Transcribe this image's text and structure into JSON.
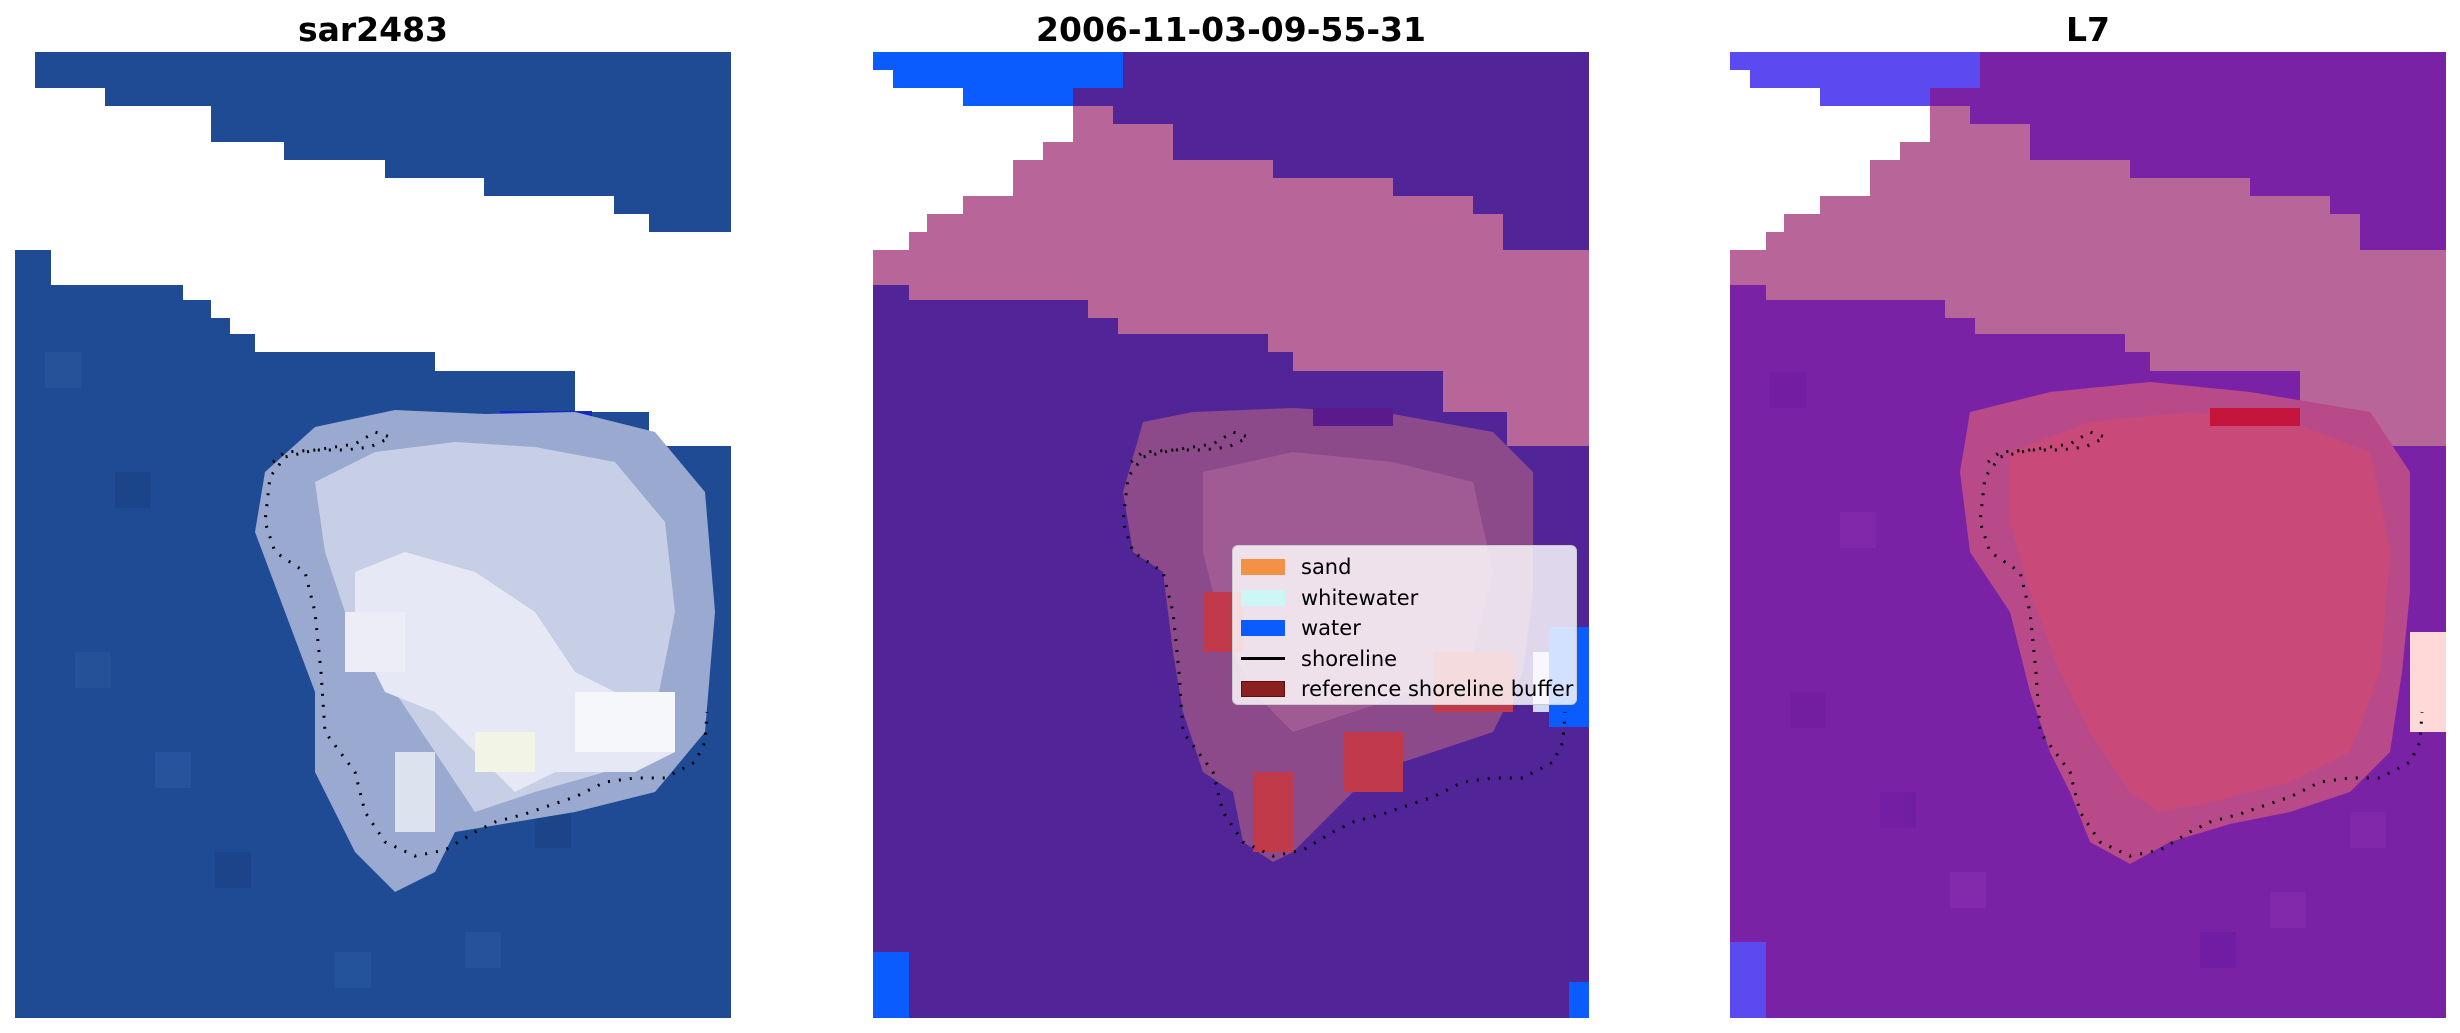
{
  "panels": [
    {
      "title": "sar2483"
    },
    {
      "title": "2006-11-03-09-55-31"
    },
    {
      "title": "L7"
    }
  ],
  "legend": {
    "items": [
      {
        "label": "sand",
        "color": "#f39245"
      },
      {
        "label": "whitewater",
        "color": "#cdf6f6"
      },
      {
        "label": "water",
        "color": "#0a5cff"
      },
      {
        "label": "shoreline",
        "color": "#000000"
      },
      {
        "label": "reference shoreline buffer",
        "color": "#8b2020"
      }
    ]
  },
  "colors": {
    "rgb_ocean": "#1f4a94",
    "class_water": "#512598",
    "class_buffer_pink": "#b8659a",
    "class_land": "#8c4a8a",
    "class_red": "#c03a4c",
    "l7_purple": "#7a22a6",
    "l7_pink": "#c94a78",
    "no_data": "#ffffff"
  }
}
